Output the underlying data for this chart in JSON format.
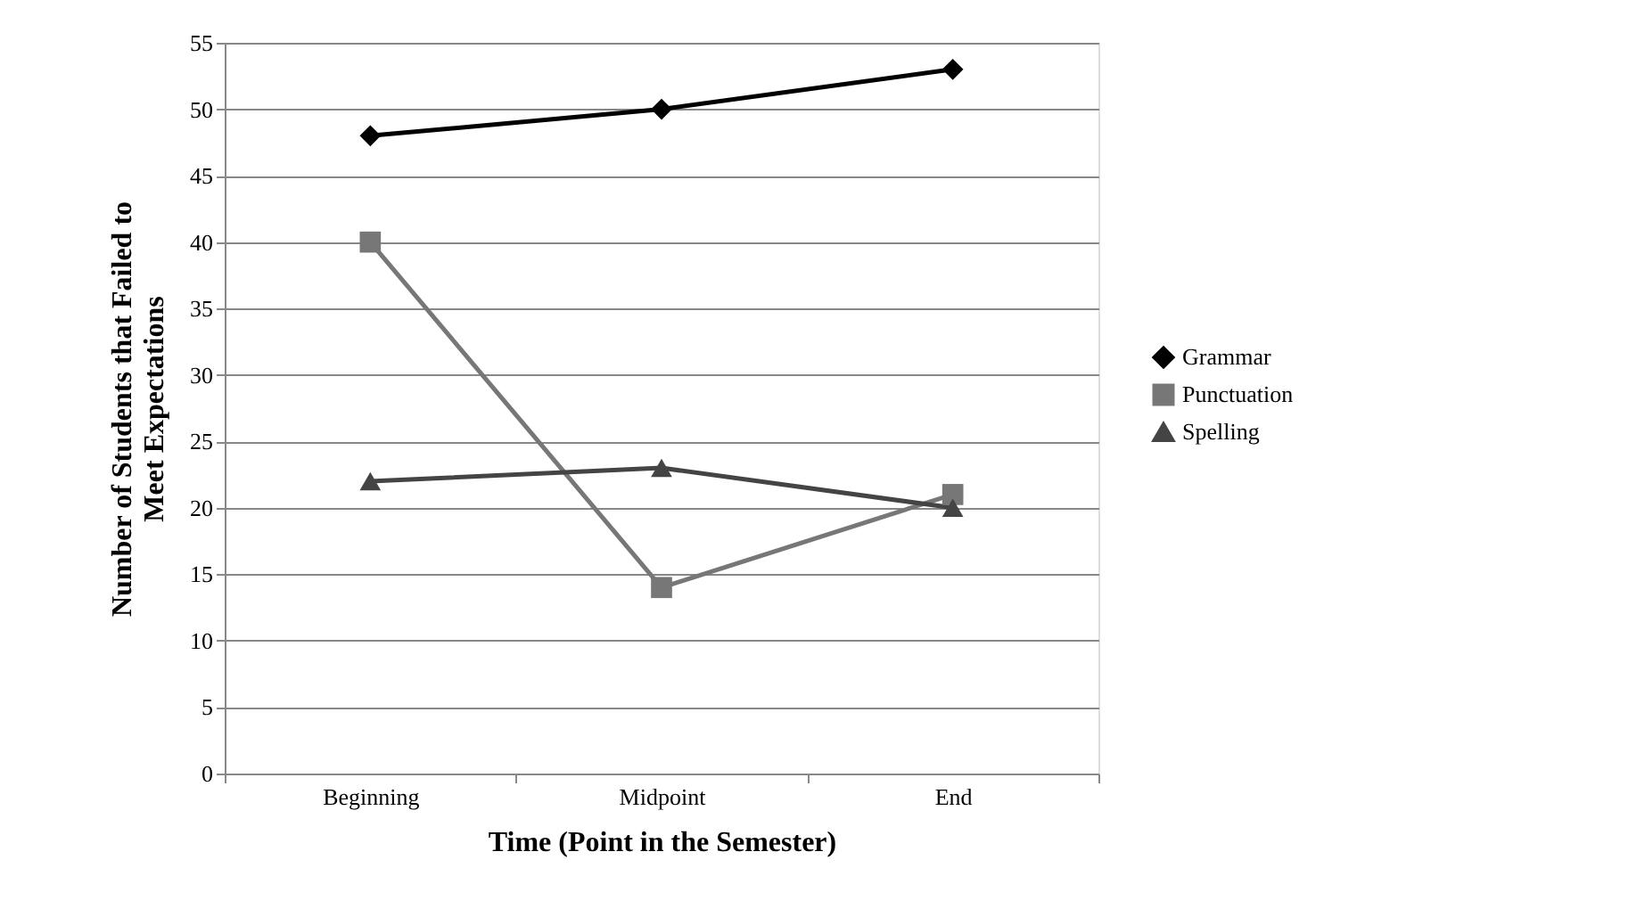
{
  "chart_data": {
    "type": "line",
    "xlabel": "Time (Point in the Semester)",
    "ylabel": "Number of Students that Failed to Meet Expectations",
    "categories": [
      "Beginning",
      "Midpoint",
      "End"
    ],
    "series": [
      {
        "name": "Grammar",
        "color": "#000000",
        "marker": "diamond",
        "values": [
          48,
          50,
          53
        ]
      },
      {
        "name": "Punctuation",
        "color": "#777777",
        "marker": "square",
        "values": [
          40,
          14,
          21
        ]
      },
      {
        "name": "Spelling",
        "color": "#444444",
        "marker": "triangle",
        "values": [
          22,
          23,
          20
        ]
      }
    ],
    "ylim": [
      0,
      55
    ],
    "yticks": [
      0,
      5,
      10,
      15,
      20,
      25,
      30,
      35,
      40,
      45,
      50,
      55
    ],
    "grid": "y",
    "legend": "right",
    "line_style": "solid"
  }
}
